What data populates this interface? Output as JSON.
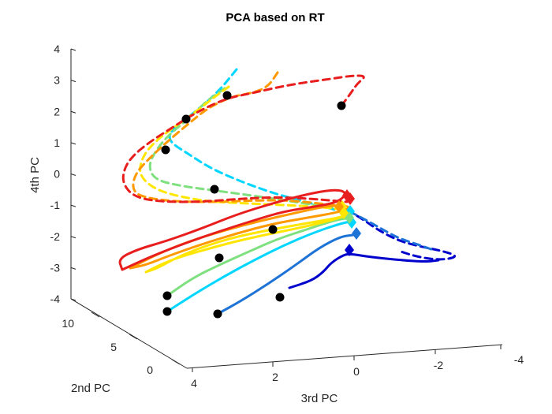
{
  "chart_data": {
    "type": "line",
    "projection": "3d",
    "title": "PCA based on RT",
    "xlabel": "3rd PC",
    "ylabel": "2nd PC",
    "zlabel": "4th PC",
    "xlim": [
      4,
      -4
    ],
    "ylim": [
      0,
      12
    ],
    "zlim": [
      -4,
      4
    ],
    "x_ticks": [
      "4",
      "2",
      "0",
      "-2",
      "-4"
    ],
    "y_ticks": [
      "0",
      "5",
      "10"
    ],
    "z_ticks": [
      "4",
      "3",
      "2",
      "1",
      "0",
      "-1",
      "-2",
      "-3",
      "-4"
    ],
    "grid": false,
    "legend": "none",
    "series": [
      {
        "group": "solid",
        "color": "#0000cd",
        "style": "solid",
        "points": [
          [
            367,
            365
          ],
          [
            395,
            356
          ],
          [
            410,
            345
          ],
          [
            420,
            333
          ],
          [
            436,
            323
          ],
          [
            445,
            322
          ],
          [
            470,
            326
          ],
          [
            510,
            330
          ],
          [
            540,
            332
          ],
          [
            556,
            330
          ]
        ],
        "start_marker": [
          355,
          377
        ],
        "end_marker": [
          443,
          317
        ]
      },
      {
        "group": "solid",
        "color": "#1e73d6",
        "style": "solid",
        "points": [
          [
            276,
            398
          ],
          [
            305,
            382
          ],
          [
            340,
            360
          ],
          [
            375,
            336
          ],
          [
            405,
            314
          ],
          [
            432,
            300
          ],
          [
            448,
            298
          ]
        ],
        "start_marker": [
          276,
          398
        ],
        "end_marker": [
          452,
          296
        ]
      },
      {
        "group": "solid",
        "color": "#00d6ff",
        "style": "solid",
        "points": [
          [
            212,
            395
          ],
          [
            248,
            372
          ],
          [
            285,
            350
          ],
          [
            322,
            330
          ],
          [
            358,
            312
          ],
          [
            395,
            296
          ],
          [
            430,
            284
          ],
          [
            448,
            280
          ]
        ],
        "start_marker": [
          212,
          395
        ],
        "end_marker": [
          446,
          282
        ]
      },
      {
        "group": "solid",
        "color": "#7ee07e",
        "style": "solid",
        "points": [
          [
            212,
            375
          ],
          [
            245,
            352
          ],
          [
            280,
            335
          ],
          [
            318,
            318
          ],
          [
            352,
            303
          ],
          [
            392,
            290
          ],
          [
            425,
            279
          ],
          [
            446,
            276
          ]
        ],
        "start_marker": [
          212,
          375
        ],
        "end_marker": [
          443,
          276
        ]
      },
      {
        "group": "solid",
        "color": "#ffe600",
        "style": "solid",
        "points": [
          [
            185,
            345
          ],
          [
            215,
            330
          ],
          [
            255,
            318
          ],
          [
            295,
            307
          ],
          [
            335,
            298
          ],
          [
            375,
            290
          ],
          [
            410,
            282
          ],
          [
            438,
            274
          ],
          [
            447,
            270
          ],
          [
            430,
            276
          ],
          [
            395,
            282
          ],
          [
            350,
            290
          ],
          [
            300,
            300
          ],
          [
            260,
            312
          ],
          [
            225,
            326
          ],
          [
            200,
            340
          ],
          [
            185,
            345
          ]
        ],
        "start_marker": null,
        "end_marker": [
          436,
          270
        ]
      },
      {
        "group": "solid",
        "color": "#ff9900",
        "style": "solid",
        "points": [
          [
            165,
            340
          ],
          [
            200,
            322
          ],
          [
            240,
            306
          ],
          [
            285,
            292
          ],
          [
            330,
            280
          ],
          [
            375,
            270
          ],
          [
            410,
            262
          ],
          [
            436,
            260
          ],
          [
            445,
            264
          ],
          [
            425,
            270
          ],
          [
            390,
            276
          ],
          [
            345,
            284
          ],
          [
            300,
            296
          ],
          [
            255,
            310
          ],
          [
            215,
            324
          ],
          [
            185,
            336
          ],
          [
            165,
            340
          ]
        ],
        "start_marker": [
          278,
          327
        ],
        "end_marker": [
          430,
          262
        ]
      },
      {
        "group": "solid",
        "color": "#e81e1e",
        "style": "solid",
        "points": [
          [
            155,
            342
          ],
          [
            150,
            328
          ],
          [
            175,
            316
          ],
          [
            210,
            306
          ],
          [
            255,
            290
          ],
          [
            300,
            272
          ],
          [
            345,
            258
          ],
          [
            390,
            246
          ],
          [
            425,
            240
          ],
          [
            440,
            244
          ],
          [
            430,
            256
          ],
          [
            400,
            262
          ],
          [
            360,
            268
          ],
          [
            320,
            280
          ],
          [
            270,
            296
          ],
          [
            225,
            312
          ],
          [
            190,
            326
          ],
          [
            168,
            336
          ],
          [
            155,
            342
          ]
        ],
        "start_marker": [
          346,
          291
        ],
        "end_marker": [
          440,
          248
        ]
      },
      {
        "group": "dashed",
        "color": "#0000cd",
        "style": "dashed",
        "points": [
          [
            440,
            266
          ],
          [
            460,
            278
          ],
          [
            480,
            292
          ],
          [
            505,
            305
          ],
          [
            530,
            312
          ],
          [
            560,
            318
          ],
          [
            582,
            325
          ],
          [
            560,
            330
          ],
          [
            530,
            326
          ],
          [
            505,
            318
          ]
        ],
        "start_marker": null,
        "end_marker": null
      },
      {
        "group": "dashed",
        "color": "#1e73d6",
        "style": "dashed",
        "points": [
          [
            430,
            262
          ],
          [
            455,
            274
          ],
          [
            480,
            288
          ],
          [
            505,
            302
          ],
          [
            530,
            310
          ],
          [
            552,
            318
          ]
        ],
        "start_marker": null,
        "end_marker": null
      },
      {
        "group": "dashed",
        "color": "#00d6ff",
        "style": "dashed",
        "points": [
          [
            300,
            88
          ],
          [
            278,
            115
          ],
          [
            250,
            140
          ],
          [
            220,
            162
          ],
          [
            212,
            178
          ],
          [
            240,
            196
          ],
          [
            268,
            214
          ],
          [
            310,
            232
          ],
          [
            350,
            246
          ],
          [
            380,
            254
          ],
          [
            410,
            262
          ],
          [
            440,
            270
          ]
        ],
        "start_marker": [
          272,
          240
        ],
        "end_marker": [
          444,
          268
        ]
      },
      {
        "group": "dashed",
        "color": "#7ee07e",
        "style": "dashed",
        "points": [
          [
            285,
            112
          ],
          [
            262,
            128
          ],
          [
            240,
            150
          ],
          [
            215,
            170
          ],
          [
            198,
            190
          ],
          [
            188,
            210
          ],
          [
            196,
            228
          ],
          [
            230,
            236
          ],
          [
            275,
            242
          ],
          [
            320,
            248
          ],
          [
            360,
            254
          ],
          [
            400,
            260
          ],
          [
            440,
            266
          ]
        ],
        "start_marker": [
          236,
          151
        ],
        "end_marker": null
      },
      {
        "group": "dashed",
        "color": "#ffe600",
        "style": "dashed",
        "points": [
          [
            290,
            110
          ],
          [
            268,
            126
          ],
          [
            240,
            148
          ],
          [
            214,
            166
          ],
          [
            194,
            182
          ],
          [
            180,
            200
          ],
          [
            176,
            222
          ],
          [
            196,
            240
          ],
          [
            230,
            250
          ],
          [
            270,
            256
          ],
          [
            315,
            258
          ],
          [
            360,
            260
          ],
          [
            400,
            262
          ],
          [
            438,
            266
          ]
        ],
        "start_marker": [
          210,
          190
        ],
        "end_marker": [
          434,
          262
        ]
      },
      {
        "group": "dashed",
        "color": "#ff9900",
        "style": "dashed",
        "points": [
          [
            352,
            92
          ],
          [
            340,
            110
          ],
          [
            320,
            118
          ],
          [
            295,
            122
          ],
          [
            265,
            136
          ],
          [
            240,
            156
          ],
          [
            214,
            178
          ],
          [
            190,
            200
          ],
          [
            170,
            222
          ],
          [
            168,
            244
          ],
          [
            190,
            252
          ],
          [
            230,
            256
          ],
          [
            280,
            256
          ],
          [
            325,
            254
          ],
          [
            365,
            254
          ],
          [
            405,
            258
          ],
          [
            440,
            262
          ]
        ],
        "start_marker": [
          288,
          121
        ],
        "end_marker": null
      },
      {
        "group": "dashed",
        "color": "#e81e1e",
        "style": "dashed",
        "points": [
          [
            433,
            134
          ],
          [
            445,
            118
          ],
          [
            453,
            106
          ],
          [
            465,
            96
          ],
          [
            445,
            96
          ],
          [
            420,
            100
          ],
          [
            390,
            104
          ],
          [
            355,
            110
          ],
          [
            320,
            118
          ],
          [
            290,
            124
          ],
          [
            262,
            136
          ],
          [
            240,
            148
          ],
          [
            215,
            164
          ],
          [
            190,
            180
          ],
          [
            170,
            196
          ],
          [
            158,
            212
          ],
          [
            155,
            232
          ],
          [
            170,
            250
          ],
          [
            205,
            256
          ],
          [
            255,
            256
          ],
          [
            305,
            252
          ],
          [
            350,
            250
          ],
          [
            395,
            252
          ],
          [
            440,
            256
          ]
        ],
        "start_marker": [
          433,
          134
        ],
        "end_marker": [
          444,
          252
        ]
      }
    ]
  }
}
